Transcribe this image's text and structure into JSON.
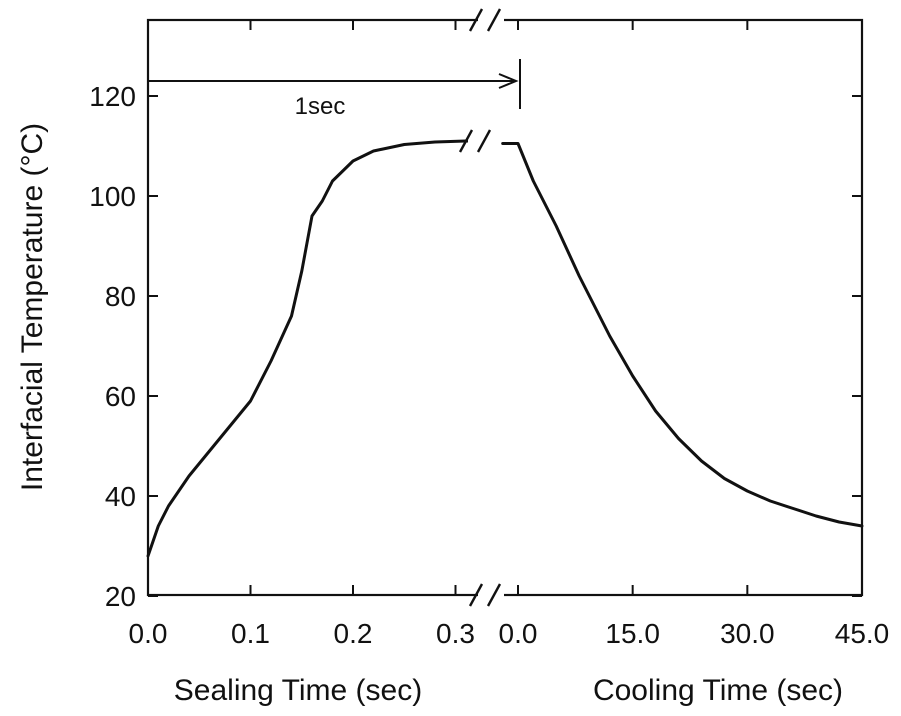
{
  "chart_data": {
    "type": "line",
    "ylabel": "Interfacial Temperature (°C)",
    "ylim": [
      20,
      130
    ],
    "yticks": [
      "20",
      "40",
      "60",
      "80",
      "100",
      "120"
    ],
    "grid": false,
    "segments": [
      {
        "xlabel": "Sealing Time (sec)",
        "xlim": [
          0.0,
          0.35
        ],
        "xticks": [
          "0.0",
          "0.1",
          "0.2",
          "0.3"
        ],
        "x": [
          0.0,
          0.01,
          0.02,
          0.04,
          0.06,
          0.08,
          0.1,
          0.12,
          0.14,
          0.15,
          0.16,
          0.17,
          0.18,
          0.2,
          0.22,
          0.25,
          0.28,
          0.31,
          0.33
        ],
        "y": [
          28,
          34,
          38,
          44,
          49,
          54,
          59,
          67,
          76,
          85,
          96,
          99,
          103,
          107,
          109,
          110.3,
          110.8,
          111,
          111
        ]
      },
      {
        "xlabel": "Cooling Time (sec)",
        "xlim": [
          0.0,
          45.0
        ],
        "xticks": [
          "0.0",
          "15.0",
          "30.0",
          "45.0"
        ],
        "x": [
          -2.0,
          0.0,
          2.0,
          5.0,
          8.0,
          12.0,
          15.0,
          18.0,
          21.0,
          24.0,
          27.0,
          30.0,
          33.0,
          36.0,
          39.0,
          42.0,
          45.0
        ],
        "y": [
          110.5,
          110.5,
          103,
          94,
          84,
          72,
          64,
          57,
          51.5,
          47,
          43.5,
          41,
          39,
          37.5,
          36,
          34.8,
          34
        ]
      }
    ],
    "annotations": [
      {
        "text": "1sec",
        "y": 123
      }
    ]
  }
}
